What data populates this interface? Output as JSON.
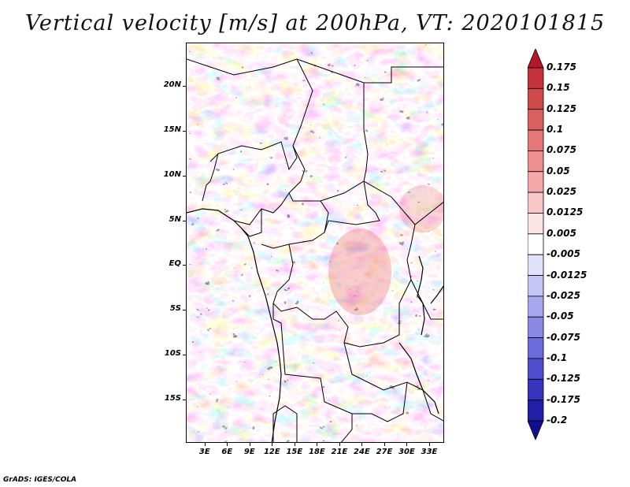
{
  "title": "Vertical velocity [m/s] at 200hPa, VT: 2020101815",
  "footer": "GrADS: IGES/COLA",
  "map": {
    "lat_labels": [
      "20N",
      "15N",
      "10N",
      "5N",
      "EQ",
      "5S",
      "10S",
      "15S"
    ],
    "lat_values": [
      20,
      15,
      10,
      5,
      0,
      -5,
      -10,
      -15
    ],
    "lon_labels": [
      "3E",
      "6E",
      "9E",
      "12E",
      "15E",
      "18E",
      "21E",
      "24E",
      "27E",
      "30E",
      "33E"
    ],
    "lon_values": [
      3,
      6,
      9,
      12,
      15,
      18,
      21,
      24,
      27,
      30,
      33
    ],
    "lon_range": [
      0.5,
      35
    ],
    "lat_range": [
      -19.8,
      24.8
    ]
  },
  "colorbar": {
    "labels": [
      "0.175",
      "0.15",
      "0.125",
      "0.1",
      "0.075",
      "0.05",
      "0.025",
      "0.0125",
      "0.005",
      "-0.005",
      "-0.0125",
      "-0.025",
      "-0.05",
      "-0.075",
      "-0.1",
      "-0.125",
      "-0.175",
      "-0.2"
    ],
    "colors": [
      "#b2182b",
      "#c4333b",
      "#d04a4a",
      "#db6060",
      "#e57777",
      "#ee8f8f",
      "#f5a8a8",
      "#f9c6c6",
      "#fde4e4",
      "#ffffff",
      "#e1e1fb",
      "#c5c5f6",
      "#a8a8ef",
      "#8a8ae6",
      "#6c6cdc",
      "#4e4ece",
      "#3434bd",
      "#1f1fa8",
      "#10108f"
    ]
  },
  "colors": {
    "neg_field": "#8e8ef0",
    "pos_field": "#ef8a8a",
    "border": "#000000"
  }
}
